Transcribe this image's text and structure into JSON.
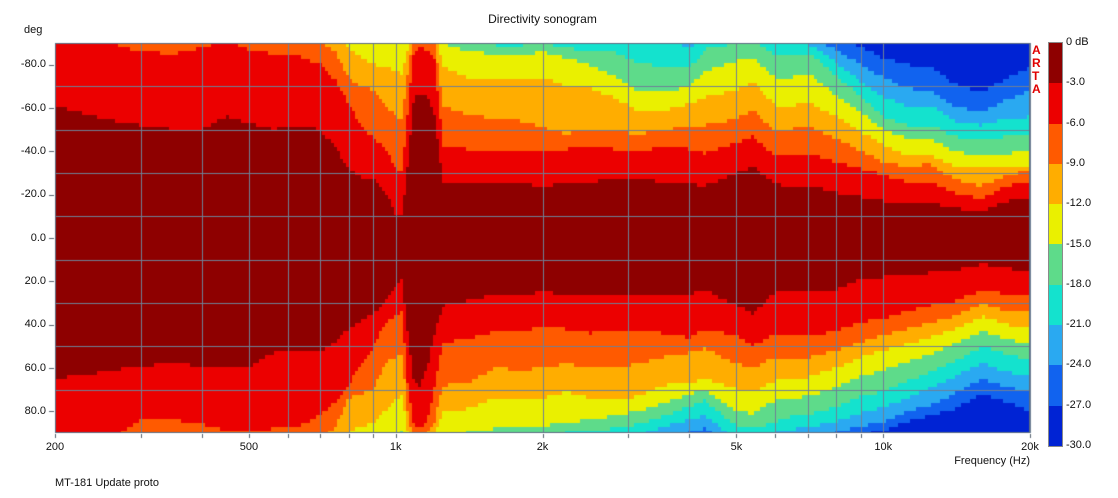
{
  "title": "Directivity sonogram",
  "footer": "MT-181 Update proto",
  "watermark": "ARTA",
  "axes": {
    "y_unit_label": "deg",
    "x_axis_label": "Frequency (Hz)",
    "y_ticks": [
      {
        "label": "-80.0",
        "a": -80
      },
      {
        "label": "-60.0",
        "a": -60
      },
      {
        "label": "-40.0",
        "a": -40
      },
      {
        "label": "-20.0",
        "a": -20
      },
      {
        "label": "0.0",
        "a": 0
      },
      {
        "label": "20.0",
        "a": 20
      },
      {
        "label": "40.0",
        "a": 40
      },
      {
        "label": "60.0",
        "a": 60
      },
      {
        "label": "80.0",
        "a": 80
      }
    ],
    "x_ticks": [
      {
        "label": "200",
        "f": 200
      },
      {
        "label": "500",
        "f": 500
      },
      {
        "label": "1k",
        "f": 1000
      },
      {
        "label": "2k",
        "f": 2000
      },
      {
        "label": "5k",
        "f": 5000
      },
      {
        "label": "10k",
        "f": 10000
      },
      {
        "label": "20k",
        "f": 20000
      }
    ]
  },
  "legend": {
    "labels": [
      "0 dB",
      "-3.0",
      "-6.0",
      "-9.0",
      "-12.0",
      "-15.0",
      "-18.0",
      "-21.0",
      "-24.0",
      "-27.0",
      "-30.0"
    ]
  },
  "chart_data": {
    "type": "heatmap",
    "title": "Directivity sonogram",
    "xlabel": "Frequency (Hz)",
    "ylabel": "deg",
    "x_axis": {
      "scale": "log",
      "min": 200,
      "max": 20000,
      "gridlines": [
        300,
        400,
        500,
        600,
        700,
        800,
        900,
        1000,
        2000,
        3000,
        4000,
        5000,
        6000,
        7000,
        8000,
        9000,
        10000,
        20000
      ]
    },
    "y_axis": {
      "min": -90,
      "max": 90,
      "gridline_step": 20
    },
    "levels_db": [
      0,
      -3,
      -6,
      -9,
      -12,
      -15,
      -18,
      -21,
      -24,
      -27,
      -30
    ],
    "palette": [
      "#8E0000",
      "#EC0000",
      "#FF5A00",
      "#FFAD00",
      "#EAF000",
      "#5EDB8A",
      "#14E2CE",
      "#2AA9F1",
      "#1163EF",
      "#0023D4"
    ],
    "grid_color": "#6F8096",
    "contours": {
      "comment": "Each row: [freq_Hz, then off-axis angle (deg) where level crosses -3,-6,-9,-12,-15,-18,-21,-24,-27 dB]. Values >90 = never crossed. 'upper'=negative angles, 'lower'=positive angles.",
      "thresholds_db": [
        -3,
        -6,
        -9,
        -12,
        -15,
        -18,
        -21,
        -24,
        -27
      ],
      "upper": [
        [
          200,
          61,
          95,
          97,
          99,
          101,
          103,
          105,
          107,
          109
        ],
        [
          250,
          55,
          91,
          97,
          99,
          101,
          103,
          105,
          107,
          109
        ],
        [
          300,
          52,
          86,
          96,
          99,
          101,
          103,
          105,
          107,
          109
        ],
        [
          350,
          50,
          85,
          96,
          99,
          101,
          103,
          105,
          107,
          109
        ],
        [
          400,
          50,
          88,
          96,
          99,
          101,
          103,
          105,
          107,
          109
        ],
        [
          450,
          56,
          91,
          97,
          99,
          101,
          103,
          105,
          107,
          109
        ],
        [
          500,
          53,
          87,
          96,
          99,
          101,
          103,
          105,
          107,
          109
        ],
        [
          560,
          50,
          85,
          96,
          99,
          101,
          103,
          105,
          107,
          109
        ],
        [
          630,
          52,
          84,
          95,
          99,
          101,
          103,
          105,
          107,
          109
        ],
        [
          700,
          50,
          80,
          90,
          98,
          101,
          103,
          105,
          107,
          109
        ],
        [
          750,
          42,
          73,
          86,
          96,
          101,
          103,
          105,
          107,
          109
        ],
        [
          800,
          32,
          62,
          74,
          88,
          98,
          103,
          105,
          107,
          109
        ],
        [
          850,
          28,
          52,
          70,
          83,
          95,
          103,
          105,
          107,
          109
        ],
        [
          900,
          27,
          46,
          68,
          80,
          93,
          103,
          105,
          107,
          109
        ],
        [
          950,
          22,
          42,
          62,
          79,
          92,
          103,
          105,
          107,
          109
        ],
        [
          1000,
          11,
          32,
          56,
          77,
          91,
          103,
          105,
          107,
          109
        ],
        [
          1030,
          10,
          31,
          55,
          76,
          90,
          103,
          105,
          107,
          109
        ],
        [
          1060,
          35,
          60,
          78,
          88,
          97,
          103,
          105,
          107,
          109
        ],
        [
          1090,
          64,
          86,
          92,
          98,
          101,
          103,
          105,
          107,
          109
        ],
        [
          1120,
          67,
          88,
          93,
          98,
          101,
          103,
          105,
          107,
          109
        ],
        [
          1160,
          65,
          87,
          92,
          98,
          101,
          103,
          105,
          107,
          109
        ],
        [
          1200,
          58,
          84,
          91,
          97,
          101,
          103,
          105,
          107,
          109
        ],
        [
          1250,
          26,
          42,
          61,
          79,
          90,
          99,
          105,
          107,
          109
        ],
        [
          1400,
          26,
          41,
          57,
          74,
          86,
          92,
          100,
          107,
          109
        ],
        [
          1600,
          25,
          41,
          55,
          73,
          85,
          89,
          98,
          107,
          109
        ],
        [
          1800,
          25,
          41,
          54,
          73,
          84,
          89,
          97,
          107,
          109
        ],
        [
          2000,
          24,
          40,
          51,
          74,
          86,
          90,
          98,
          107,
          109
        ],
        [
          2240,
          25,
          41,
          48,
          70,
          83,
          88,
          95,
          107,
          109
        ],
        [
          2500,
          26,
          42,
          50,
          69,
          80,
          86,
          93,
          105,
          109
        ],
        [
          2800,
          27,
          41,
          49,
          65,
          75,
          86,
          94,
          104,
          109
        ],
        [
          3150,
          27,
          40,
          48,
          58,
          67,
          81,
          93,
          103,
          109
        ],
        [
          3550,
          26,
          42,
          50,
          59,
          67,
          79,
          92,
          102,
          108
        ],
        [
          4000,
          25,
          41,
          51,
          62,
          70,
          78,
          88,
          97,
          105
        ],
        [
          4300,
          24,
          39,
          52,
          65,
          77,
          87,
          93,
          98,
          104
        ],
        [
          5000,
          30,
          44,
          55,
          68,
          82,
          90,
          95,
          99,
          104
        ],
        [
          5400,
          33,
          47,
          59,
          72,
          83,
          91,
          95,
          99,
          104
        ],
        [
          6000,
          25,
          38,
          49,
          61,
          74,
          84,
          92,
          96,
          101
        ],
        [
          6300,
          24,
          38,
          50,
          61,
          74,
          84,
          90,
          94,
          99
        ],
        [
          7100,
          24,
          39,
          51,
          62,
          75,
          85,
          89,
          93,
          97
        ],
        [
          8000,
          21,
          35,
          46,
          56,
          66,
          75,
          81,
          87,
          93
        ],
        [
          9000,
          19,
          32,
          40,
          49,
          58,
          65,
          72,
          80,
          88
        ],
        [
          10000,
          17,
          29,
          35,
          43,
          50,
          56,
          65,
          74,
          83
        ],
        [
          11200,
          16,
          26,
          33,
          38,
          46,
          52,
          61,
          69,
          80
        ],
        [
          12500,
          16,
          26,
          34,
          38,
          46,
          52,
          61,
          68,
          79
        ],
        [
          14000,
          14,
          21,
          27,
          33,
          40,
          47,
          54,
          61,
          71
        ],
        [
          15800,
          12,
          18,
          24,
          32,
          38,
          45,
          52,
          58,
          67
        ],
        [
          18000,
          17,
          24,
          29,
          33,
          39,
          47,
          55,
          64,
          74
        ],
        [
          20000,
          19,
          26,
          31,
          33,
          40,
          48,
          56,
          68,
          79
        ]
      ],
      "lower": [
        [
          200,
          65,
          95,
          97,
          99,
          101,
          103,
          105,
          107,
          109
        ],
        [
          250,
          62,
          95,
          97,
          99,
          101,
          103,
          105,
          107,
          109
        ],
        [
          300,
          59,
          84,
          96,
          99,
          101,
          103,
          105,
          107,
          109
        ],
        [
          350,
          58,
          84,
          96,
          99,
          101,
          103,
          105,
          107,
          109
        ],
        [
          400,
          59,
          86,
          96,
          99,
          101,
          103,
          105,
          107,
          109
        ],
        [
          450,
          60,
          89,
          97,
          99,
          101,
          103,
          105,
          107,
          109
        ],
        [
          500,
          60,
          90,
          97,
          99,
          101,
          103,
          105,
          107,
          109
        ],
        [
          530,
          56,
          89,
          97,
          99,
          101,
          103,
          105,
          107,
          109
        ],
        [
          560,
          53,
          88,
          96,
          99,
          101,
          103,
          105,
          107,
          109
        ],
        [
          630,
          52,
          87,
          96,
          99,
          101,
          103,
          105,
          107,
          109
        ],
        [
          700,
          53,
          82,
          92,
          98,
          101,
          103,
          105,
          107,
          109
        ],
        [
          750,
          48,
          76,
          88,
          96,
          101,
          103,
          105,
          107,
          109
        ],
        [
          800,
          42,
          68,
          74,
          90,
          99,
          103,
          105,
          107,
          109
        ],
        [
          850,
          38,
          58,
          72,
          87,
          97,
          103,
          105,
          107,
          109
        ],
        [
          900,
          35,
          50,
          70,
          85,
          95,
          103,
          105,
          107,
          109
        ],
        [
          950,
          30,
          40,
          58,
          80,
          93,
          103,
          105,
          107,
          109
        ],
        [
          1000,
          22,
          36,
          55,
          75,
          91,
          103,
          105,
          107,
          109
        ],
        [
          1030,
          18,
          34,
          53,
          72,
          89,
          103,
          105,
          107,
          109
        ],
        [
          1060,
          45,
          70,
          82,
          90,
          97,
          103,
          105,
          107,
          109
        ],
        [
          1090,
          66,
          86,
          93,
          98,
          101,
          103,
          105,
          107,
          109
        ],
        [
          1120,
          68,
          88,
          94,
          99,
          101,
          103,
          105,
          107,
          109
        ],
        [
          1160,
          60,
          84,
          91,
          97,
          101,
          103,
          105,
          107,
          109
        ],
        [
          1200,
          45,
          70,
          85,
          92,
          99,
          103,
          105,
          107,
          109
        ],
        [
          1250,
          31,
          48,
          68,
          80,
          91,
          99,
          105,
          107,
          109
        ],
        [
          1400,
          29,
          47,
          67,
          79,
          90,
          98,
          105,
          107,
          109
        ],
        [
          1600,
          26,
          43,
          60,
          74,
          88,
          95,
          105,
          107,
          109
        ],
        [
          1800,
          26,
          43,
          61,
          74,
          88,
          95,
          104,
          107,
          109
        ],
        [
          2000,
          25,
          41,
          60,
          74,
          87,
          92,
          101,
          107,
          109
        ],
        [
          2240,
          26,
          42,
          58,
          71,
          85,
          90,
          99,
          107,
          109
        ],
        [
          2500,
          27,
          44,
          60,
          74,
          84,
          89,
          97,
          107,
          109
        ],
        [
          2800,
          27,
          43,
          60,
          75,
          82,
          88,
          95,
          105,
          109
        ],
        [
          3150,
          27,
          42,
          58,
          73,
          80,
          86,
          91,
          100,
          109
        ],
        [
          3550,
          27,
          44,
          55,
          68,
          76,
          82,
          87,
          96,
          107
        ],
        [
          4000,
          26,
          46,
          53,
          67,
          72,
          78,
          84,
          90,
          100
        ],
        [
          4300,
          24,
          42,
          51,
          65,
          70,
          75,
          82,
          88,
          98
        ],
        [
          5000,
          31,
          45,
          58,
          70,
          80,
          87,
          93,
          97,
          103
        ],
        [
          5400,
          35,
          50,
          60,
          71,
          81,
          88,
          94,
          98,
          103
        ],
        [
          6000,
          25,
          44,
          55,
          66,
          75,
          85,
          90,
          94,
          99
        ],
        [
          6300,
          24,
          45,
          55,
          65,
          74,
          83,
          89,
          93,
          97
        ],
        [
          7100,
          24,
          45,
          55,
          64,
          73,
          81,
          87,
          92,
          96
        ],
        [
          8000,
          24,
          43,
          52,
          60,
          69,
          78,
          85,
          90,
          94
        ],
        [
          9000,
          19,
          39,
          48,
          55,
          64,
          73,
          81,
          87,
          91
        ],
        [
          10000,
          18,
          37,
          45,
          52,
          61,
          71,
          78,
          85,
          89
        ],
        [
          11200,
          17,
          34,
          42,
          49,
          57,
          66,
          74,
          80,
          85
        ],
        [
          12500,
          16,
          31,
          39,
          46,
          54,
          62,
          69,
          77,
          82
        ],
        [
          14000,
          15,
          29,
          36,
          42,
          49,
          57,
          64,
          72,
          79
        ],
        [
          16000,
          12,
          24,
          30,
          36,
          43,
          50,
          58,
          65,
          72
        ],
        [
          18000,
          14,
          26,
          34,
          40,
          47,
          54,
          62,
          69,
          76
        ],
        [
          20000,
          16,
          27,
          34,
          42,
          49,
          56,
          64,
          71,
          80
        ]
      ]
    }
  }
}
